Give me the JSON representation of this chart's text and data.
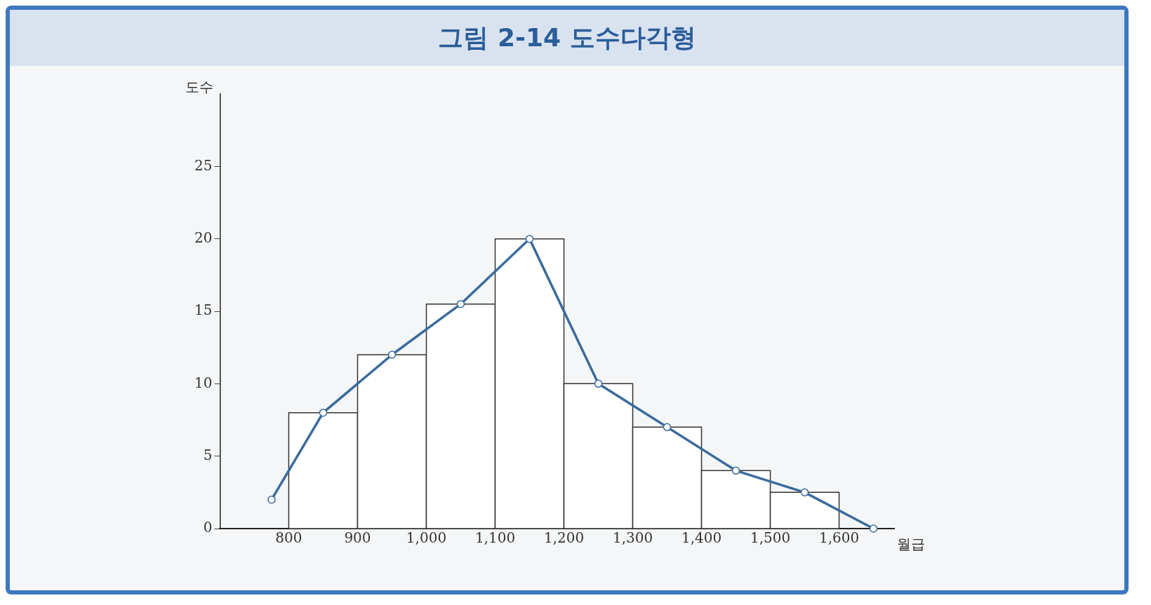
{
  "chart_data": {
    "type": "histogram",
    "title": "그림 2-14  도수다각형",
    "xlabel": "월급",
    "ylabel": "도수",
    "bins": [
      800,
      900,
      1000,
      1100,
      1200,
      1300,
      1400,
      1500,
      1600
    ],
    "values": [
      8,
      12,
      15.5,
      20,
      10,
      7,
      4,
      2.5
    ],
    "color": "#333333",
    "series": [
      {
        "type": "line",
        "color": "#3b6b9c",
        "marker": "circle",
        "x": [
          775,
          850,
          950,
          1050,
          1150,
          1250,
          1350,
          1450,
          1550,
          1650
        ],
        "values": [
          2,
          8,
          12,
          15.5,
          20,
          10,
          7,
          4,
          2.5,
          0
        ]
      }
    ],
    "xlim": [
      700,
      1680
    ],
    "xticks": [
      800,
      900,
      {
        "value": 1000,
        "label": "1,000"
      },
      {
        "value": 1100,
        "label": "1,100"
      },
      {
        "value": 1200,
        "label": "1,200"
      },
      {
        "value": 1300,
        "label": "1,300"
      },
      {
        "value": 1400,
        "label": "1,400"
      },
      {
        "value": 1500,
        "label": "1,500"
      },
      {
        "value": 1600,
        "label": "1,600"
      }
    ],
    "ylim": [
      0,
      30
    ],
    "yticks": [
      0,
      5,
      10,
      15,
      20,
      25
    ],
    "grid": false,
    "legend": false
  }
}
